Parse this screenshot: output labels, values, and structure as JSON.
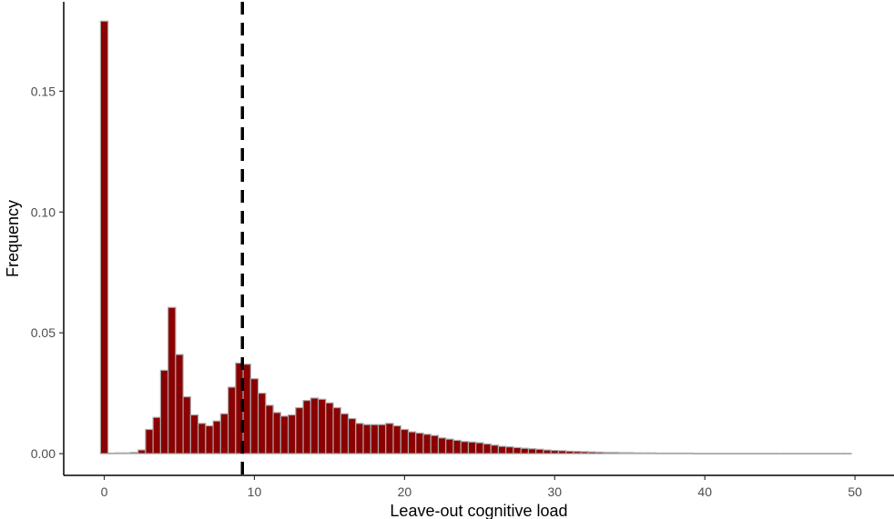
{
  "chart_data": {
    "type": "bar",
    "xlabel": "Leave-out cognitive load",
    "ylabel": "Frequency",
    "xlim": [
      -2.7,
      52.6
    ],
    "ylim": [
      -0.009,
      0.187
    ],
    "x_ticks": [
      0,
      10,
      20,
      30,
      40,
      50
    ],
    "x_tick_labels": [
      "0",
      "10",
      "20",
      "30",
      "40",
      "50"
    ],
    "y_ticks": [
      0.0,
      0.05,
      0.1,
      0.15
    ],
    "y_tick_labels": [
      "0.00",
      "0.05",
      "0.10",
      "0.15"
    ],
    "bin_width": 0.5,
    "bins": [
      [
        0.0,
        0.179
      ],
      [
        0.5,
        0.0002
      ],
      [
        1.0,
        0.0003
      ],
      [
        1.5,
        0.0003
      ],
      [
        2.0,
        0.0005
      ],
      [
        2.5,
        0.0015
      ],
      [
        3.0,
        0.01
      ],
      [
        3.5,
        0.015
      ],
      [
        4.0,
        0.0345
      ],
      [
        4.5,
        0.0605
      ],
      [
        5.0,
        0.041
      ],
      [
        5.5,
        0.0235
      ],
      [
        6.0,
        0.016
      ],
      [
        6.5,
        0.0125
      ],
      [
        7.0,
        0.0115
      ],
      [
        7.5,
        0.0135
      ],
      [
        8.0,
        0.0165
      ],
      [
        8.5,
        0.0275
      ],
      [
        9.0,
        0.0375
      ],
      [
        9.5,
        0.037
      ],
      [
        10.0,
        0.031
      ],
      [
        10.5,
        0.025
      ],
      [
        11.0,
        0.02
      ],
      [
        11.5,
        0.017
      ],
      [
        12.0,
        0.0155
      ],
      [
        12.5,
        0.016
      ],
      [
        13.0,
        0.019
      ],
      [
        13.5,
        0.022
      ],
      [
        14.0,
        0.023
      ],
      [
        14.5,
        0.0225
      ],
      [
        15.0,
        0.021
      ],
      [
        15.5,
        0.019
      ],
      [
        16.0,
        0.0165
      ],
      [
        16.5,
        0.0145
      ],
      [
        17.0,
        0.0125
      ],
      [
        17.5,
        0.012
      ],
      [
        18.0,
        0.012
      ],
      [
        18.5,
        0.012
      ],
      [
        19.0,
        0.0125
      ],
      [
        19.5,
        0.0115
      ],
      [
        20.0,
        0.01
      ],
      [
        20.5,
        0.009
      ],
      [
        21.0,
        0.0085
      ],
      [
        21.5,
        0.008
      ],
      [
        22.0,
        0.0075
      ],
      [
        22.5,
        0.0065
      ],
      [
        23.0,
        0.006
      ],
      [
        23.5,
        0.0055
      ],
      [
        24.0,
        0.005
      ],
      [
        24.5,
        0.0048
      ],
      [
        25.0,
        0.0045
      ],
      [
        25.5,
        0.004
      ],
      [
        26.0,
        0.0035
      ],
      [
        26.5,
        0.003
      ],
      [
        27.0,
        0.0028
      ],
      [
        27.5,
        0.0025
      ],
      [
        28.0,
        0.0022
      ],
      [
        28.5,
        0.002
      ],
      [
        29.0,
        0.0018
      ],
      [
        29.5,
        0.0015
      ],
      [
        30.0,
        0.0013
      ],
      [
        30.5,
        0.0012
      ],
      [
        31.0,
        0.001
      ],
      [
        31.5,
        0.0009
      ],
      [
        32.0,
        0.0008
      ],
      [
        32.5,
        0.0007
      ],
      [
        33.0,
        0.0006
      ],
      [
        33.5,
        0.0005
      ],
      [
        34.0,
        0.0005
      ],
      [
        34.5,
        0.0004
      ],
      [
        35.0,
        0.0004
      ],
      [
        35.5,
        0.0003
      ],
      [
        36.0,
        0.0003
      ],
      [
        36.5,
        0.0003
      ],
      [
        37.0,
        0.0002
      ],
      [
        37.5,
        0.0002
      ],
      [
        38.0,
        0.0002
      ],
      [
        38.5,
        0.0002
      ],
      [
        39.0,
        0.0002
      ],
      [
        39.5,
        0.0001
      ],
      [
        40.0,
        0.0001
      ],
      [
        40.5,
        0.0001
      ],
      [
        41.0,
        0.0001
      ],
      [
        41.5,
        0.0001
      ],
      [
        42.0,
        0.0001
      ],
      [
        42.5,
        0.0001
      ],
      [
        43.0,
        0.0001
      ],
      [
        43.5,
        0.0001
      ],
      [
        44.0,
        0.0001
      ],
      [
        44.5,
        0.0001
      ],
      [
        45.0,
        0.0001
      ],
      [
        45.5,
        0.0001
      ],
      [
        46.0,
        0.0001
      ],
      [
        46.5,
        0.0001
      ],
      [
        47.0,
        0.0001
      ],
      [
        47.5,
        0.0001
      ],
      [
        48.0,
        0.0001
      ],
      [
        48.5,
        0.0001
      ],
      [
        49.0,
        0.0001
      ],
      [
        49.5,
        0.0001
      ]
    ],
    "reference_line": {
      "x": 9.2,
      "style": "dashed"
    },
    "colors": {
      "bar_fill": "#8b0000",
      "bar_outline": "#a9a9a9",
      "reference_line": "#000000"
    },
    "grid": false,
    "legend": "none"
  }
}
